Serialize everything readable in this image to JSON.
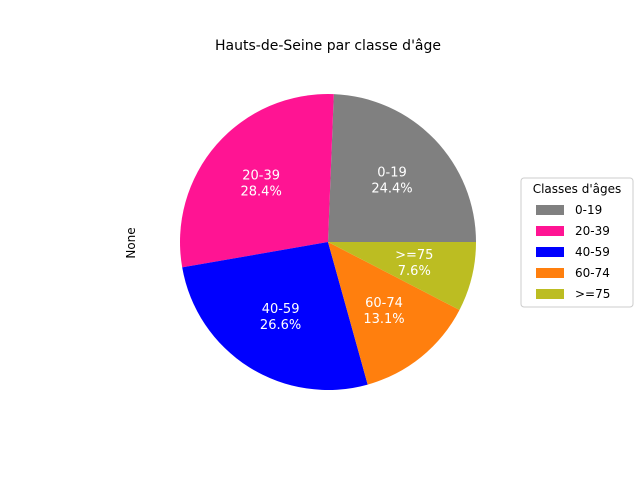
{
  "chart_data": {
    "type": "pie",
    "title": "Hauts-de-Seine par classe d'âge",
    "ylabel": "None",
    "categories": [
      "0-19",
      "20-39",
      "40-59",
      "60-74",
      ">=75"
    ],
    "values": [
      24.4,
      28.4,
      26.6,
      13.1,
      7.6
    ],
    "value_labels": [
      "24.4%",
      "28.4%",
      "26.6%",
      "13.1%",
      "7.6%"
    ],
    "colors": [
      "#808080",
      "#ff1493",
      "#0000ff",
      "#ff7f0e",
      "#bcbd22"
    ],
    "start_angle_deg": 0,
    "direction": "counterclockwise",
    "legend": {
      "title": "Classes d'âges",
      "placement": "right",
      "entries": [
        "0-19",
        "20-39",
        "40-59",
        "60-74",
        ">=75"
      ]
    }
  }
}
